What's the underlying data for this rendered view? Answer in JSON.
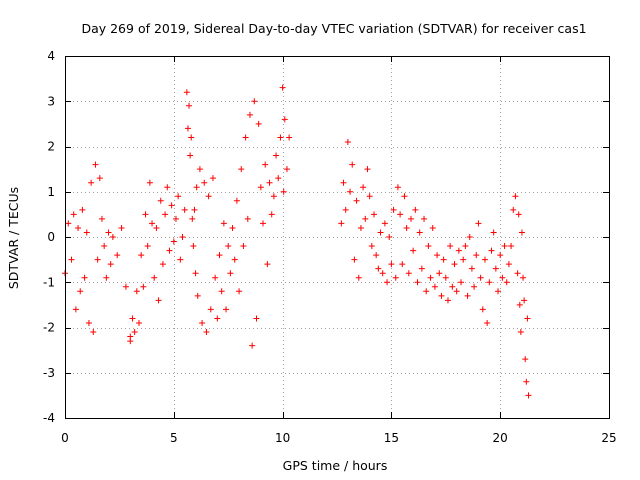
{
  "chart_data": {
    "type": "scatter",
    "title": "Day 269 of 2019, Sidereal Day-to-day VTEC variation (SDTVAR) for receiver cas1",
    "xlabel": "GPS time / hours",
    "ylabel": "SDTVAR / TECUs",
    "xlim": [
      0,
      25
    ],
    "ylim": [
      -4,
      4
    ],
    "xticks": [
      0,
      5,
      10,
      15,
      20,
      25
    ],
    "yticks": [
      -4,
      -3,
      -2,
      -1,
      0,
      1,
      2,
      3,
      4
    ],
    "grid": true,
    "marker": "+",
    "color": "#ff0000",
    "series": [
      {
        "name": "SDTVAR",
        "segments": [
          {
            "x": [
              0.0,
              0.15,
              0.3,
              0.4,
              0.5,
              0.6,
              0.7,
              0.8,
              0.9,
              1.0,
              1.1,
              1.2,
              1.3,
              1.4,
              1.5,
              1.6,
              1.7,
              1.8,
              1.9,
              2.0,
              2.1,
              2.2,
              2.4,
              2.6,
              2.8,
              3.0
            ],
            "y": [
              -0.8,
              0.3,
              -0.5,
              0.5,
              -1.6,
              0.2,
              -1.2,
              0.6,
              -0.9,
              0.1,
              -1.9,
              1.2,
              -2.1,
              1.6,
              -0.5,
              1.3,
              0.4,
              -0.2,
              -0.9,
              0.1,
              -0.6,
              0.0,
              -0.4,
              0.2,
              -1.1,
              -2.2
            ]
          },
          {
            "x": [
              3.0,
              3.1,
              3.2,
              3.3,
              3.4,
              3.5,
              3.6,
              3.7,
              3.8,
              3.9,
              4.0,
              4.1,
              4.2,
              4.3,
              4.4,
              4.5,
              4.6,
              4.7,
              4.8,
              4.9,
              5.0,
              5.1,
              5.2,
              5.3,
              5.4,
              5.5
            ],
            "y": [
              -2.3,
              -1.8,
              -2.1,
              -1.2,
              -1.9,
              -0.4,
              -1.1,
              0.5,
              -0.2,
              1.2,
              0.3,
              -0.9,
              0.2,
              -1.4,
              0.8,
              -0.6,
              0.5,
              1.1,
              -0.3,
              0.7,
              -0.1,
              0.4,
              0.9,
              -0.5,
              0.0,
              0.6
            ]
          },
          {
            "x": [
              5.6,
              5.65,
              5.7,
              5.75,
              5.8,
              5.85,
              5.9,
              5.95,
              6.0,
              6.05,
              6.1,
              6.2,
              6.3,
              6.4,
              6.5,
              6.6,
              6.7,
              6.8,
              6.9,
              7.0,
              7.1,
              7.2,
              7.3,
              7.4,
              7.5,
              7.6,
              7.7
            ],
            "y": [
              3.2,
              2.4,
              2.9,
              1.8,
              2.2,
              0.4,
              -0.2,
              0.6,
              -0.8,
              1.1,
              -1.3,
              1.5,
              -1.9,
              1.2,
              -2.1,
              0.9,
              -1.6,
              1.3,
              -0.9,
              -1.8,
              -0.4,
              -1.2,
              0.3,
              -1.6,
              -0.2,
              -0.8,
              0.2
            ]
          },
          {
            "x": [
              7.8,
              7.9,
              8.0,
              8.1,
              8.2,
              8.3,
              8.4,
              8.5,
              8.6,
              8.7,
              8.8,
              8.9,
              9.0,
              9.1,
              9.2,
              9.3,
              9.4,
              9.5,
              9.6,
              9.7,
              9.8,
              9.9,
              10.0,
              10.05,
              10.1,
              10.2,
              10.3
            ],
            "y": [
              -0.5,
              0.8,
              -1.2,
              1.5,
              -0.2,
              2.2,
              0.4,
              2.7,
              -2.4,
              3.0,
              -1.8,
              2.5,
              1.1,
              0.3,
              1.6,
              -0.6,
              1.2,
              0.5,
              0.9,
              1.8,
              1.3,
              2.2,
              3.3,
              1.0,
              2.6,
              1.5,
              2.2
            ]
          },
          {
            "x": [
              12.7,
              12.8,
              12.9,
              13.0,
              13.1,
              13.2,
              13.3,
              13.4,
              13.5,
              13.6,
              13.7,
              13.8,
              13.9,
              14.0,
              14.1,
              14.2,
              14.3,
              14.4,
              14.5,
              14.6,
              14.7,
              14.8,
              14.9,
              15.0,
              15.1,
              15.2
            ],
            "y": [
              0.3,
              1.2,
              0.6,
              2.1,
              1.0,
              1.6,
              -0.5,
              0.8,
              -0.9,
              0.2,
              1.1,
              0.4,
              1.5,
              0.9,
              -0.2,
              0.5,
              -0.4,
              -0.7,
              0.1,
              -0.8,
              0.3,
              -1.0,
              0.0,
              -0.6,
              0.6,
              -0.9
            ]
          },
          {
            "x": [
              15.3,
              15.4,
              15.5,
              15.6,
              15.7,
              15.8,
              15.9,
              16.0,
              16.1,
              16.2,
              16.3,
              16.4,
              16.5,
              16.6,
              16.7,
              16.8,
              16.9,
              17.0,
              17.1,
              17.2,
              17.3,
              17.4,
              17.5,
              17.6,
              17.7,
              17.8
            ],
            "y": [
              1.1,
              0.5,
              -0.6,
              0.9,
              0.2,
              -0.8,
              0.4,
              -0.3,
              0.6,
              -1.0,
              0.1,
              -0.7,
              0.4,
              -1.2,
              -0.2,
              -0.9,
              0.2,
              -1.1,
              -0.4,
              -0.8,
              -1.3,
              -0.5,
              -0.9,
              -1.4,
              -0.2,
              -1.1
            ]
          },
          {
            "x": [
              17.9,
              18.0,
              18.1,
              18.2,
              18.3,
              18.4,
              18.5,
              18.6,
              18.7,
              18.8,
              18.9,
              19.0,
              19.1,
              19.2,
              19.3,
              19.4,
              19.5,
              19.6,
              19.7,
              19.8,
              19.9,
              20.0,
              20.1,
              20.2,
              20.3,
              20.4
            ],
            "y": [
              -0.6,
              -1.2,
              -0.3,
              -1.0,
              -0.5,
              -0.2,
              -1.3,
              0.0,
              -0.7,
              -1.1,
              -0.4,
              0.3,
              -0.9,
              -1.6,
              -0.5,
              -1.9,
              -1.0,
              -0.3,
              0.1,
              -0.7,
              -1.2,
              -0.4,
              -0.9,
              -0.2,
              -1.0,
              -0.6
            ]
          },
          {
            "x": [
              20.5,
              20.6,
              20.7,
              20.8,
              20.85,
              20.9,
              20.95,
              21.0,
              21.05,
              21.1,
              21.15,
              21.2,
              21.25,
              21.3
            ],
            "y": [
              -0.2,
              0.6,
              0.9,
              -0.8,
              0.5,
              -1.5,
              -2.1,
              0.1,
              -0.9,
              -1.4,
              -2.7,
              -3.2,
              -1.8,
              -3.5
            ]
          }
        ]
      }
    ]
  }
}
